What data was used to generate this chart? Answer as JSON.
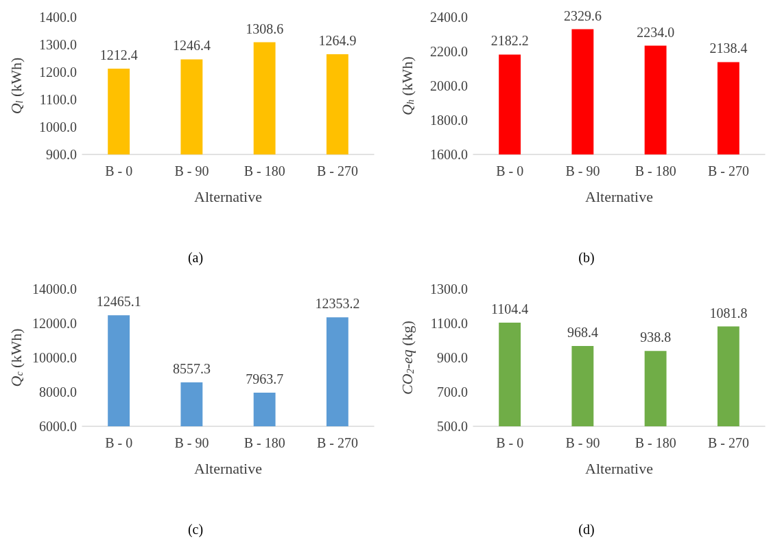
{
  "chart_data": [
    {
      "type": "bar",
      "categories": [
        "B - 0",
        "B - 90",
        "B - 180",
        "B - 270"
      ],
      "values": [
        1212.4,
        1246.4,
        1308.6,
        1264.9
      ],
      "value_labels": [
        "1212.4",
        "1246.4",
        "1308.6",
        "1264.9"
      ],
      "color": "#ffc000",
      "xlabel": "Alternative",
      "ylabel": "Q$_{l}$ (kWh)",
      "ylim": [
        900,
        1400
      ],
      "yticks": [
        {
          "value": 900,
          "label": "900.0"
        },
        {
          "value": 1000,
          "label": "1000.0"
        },
        {
          "value": 1100,
          "label": "1100.0"
        },
        {
          "value": 1200,
          "label": "1200.0"
        },
        {
          "value": 1300,
          "label": "1300.0"
        },
        {
          "value": 1400,
          "label": "1400.0"
        }
      ],
      "annotations": [
        "(a)"
      ]
    },
    {
      "type": "bar",
      "categories": [
        "B - 0",
        "B - 90",
        "B - 180",
        "B - 270"
      ],
      "values": [
        2182.2,
        2329.6,
        2234.0,
        2138.4
      ],
      "value_labels": [
        "2182.2",
        "2329.6",
        "2234.0",
        "2138.4"
      ],
      "color": "#ff0000",
      "xlabel": "Alternative",
      "ylabel": "Q$_{h}$ (kWh)",
      "ylim": [
        1600,
        2400
      ],
      "yticks": [
        {
          "value": 1600,
          "label": "1600.0"
        },
        {
          "value": 1800,
          "label": "1800.0"
        },
        {
          "value": 2000,
          "label": "2000.0"
        },
        {
          "value": 2200,
          "label": "2200.0"
        },
        {
          "value": 2400,
          "label": "2400.0"
        }
      ],
      "annotations": [
        "(b)"
      ]
    },
    {
      "type": "bar",
      "categories": [
        "B - 0",
        "B - 90",
        "B - 180",
        "B - 270"
      ],
      "values": [
        12465.1,
        8557.3,
        7963.7,
        12353.2
      ],
      "value_labels": [
        "12465.1",
        "8557.3",
        "7963.7",
        "12353.2"
      ],
      "color": "#5b9bd5",
      "xlabel": "Alternative",
      "ylabel": "Q$_{c}$ (kWh)",
      "ylim": [
        6000,
        14000
      ],
      "yticks": [
        {
          "value": 6000,
          "label": "6000.0"
        },
        {
          "value": 8000,
          "label": "8000.0"
        },
        {
          "value": 10000,
          "label": "10000.0"
        },
        {
          "value": 12000,
          "label": "12000.0"
        },
        {
          "value": 14000,
          "label": "14000.0"
        }
      ],
      "annotations": [
        "(c)"
      ]
    },
    {
      "type": "bar",
      "categories": [
        "B - 0",
        "B - 90",
        "B - 180",
        "B - 270"
      ],
      "values": [
        1104.4,
        968.4,
        938.8,
        1081.8
      ],
      "value_labels": [
        "1104.4",
        "968.4",
        "938.8",
        "1081.8"
      ],
      "color": "#70ad47",
      "xlabel": "Alternative",
      "ylabel": "CO$_{2}$-eq (kg)",
      "ylim": [
        500,
        1300
      ],
      "yticks": [
        {
          "value": 500,
          "label": "500.0"
        },
        {
          "value": 700,
          "label": "700.0"
        },
        {
          "value": 900,
          "label": "900.0"
        },
        {
          "value": 1100,
          "label": "1100.0"
        },
        {
          "value": 1300,
          "label": "1300.0"
        }
      ],
      "annotations": [
        "(d)"
      ]
    }
  ]
}
